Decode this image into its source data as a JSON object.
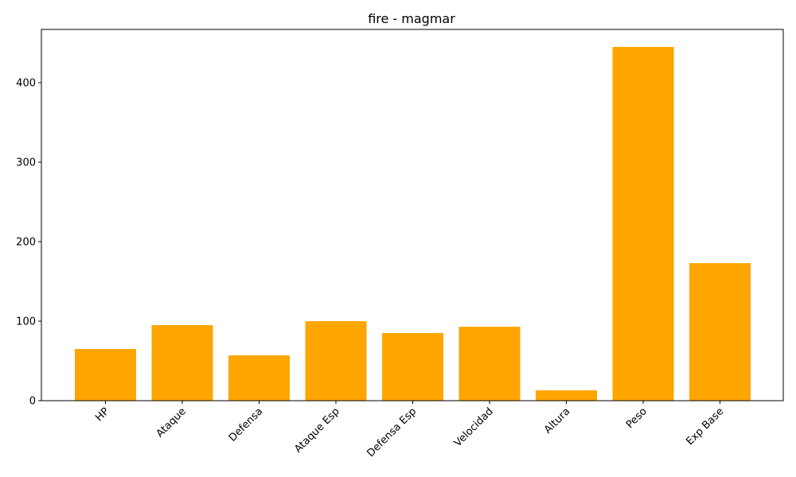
{
  "chart_data": {
    "type": "bar",
    "title": "fire - magmar",
    "xlabel": "",
    "ylabel": "",
    "categories": [
      "HP",
      "Ataque",
      "Defensa",
      "Ataque Esp",
      "Defensa Esp",
      "Velocidad",
      "Altura",
      "Peso",
      "Exp Base"
    ],
    "values": [
      65,
      95,
      57,
      100,
      85,
      93,
      13,
      445,
      173
    ],
    "ylim": [
      0,
      467
    ],
    "yticks": [
      0,
      100,
      200,
      300,
      400
    ],
    "bar_color": "#ffa500",
    "grid": false,
    "legend": "none"
  }
}
